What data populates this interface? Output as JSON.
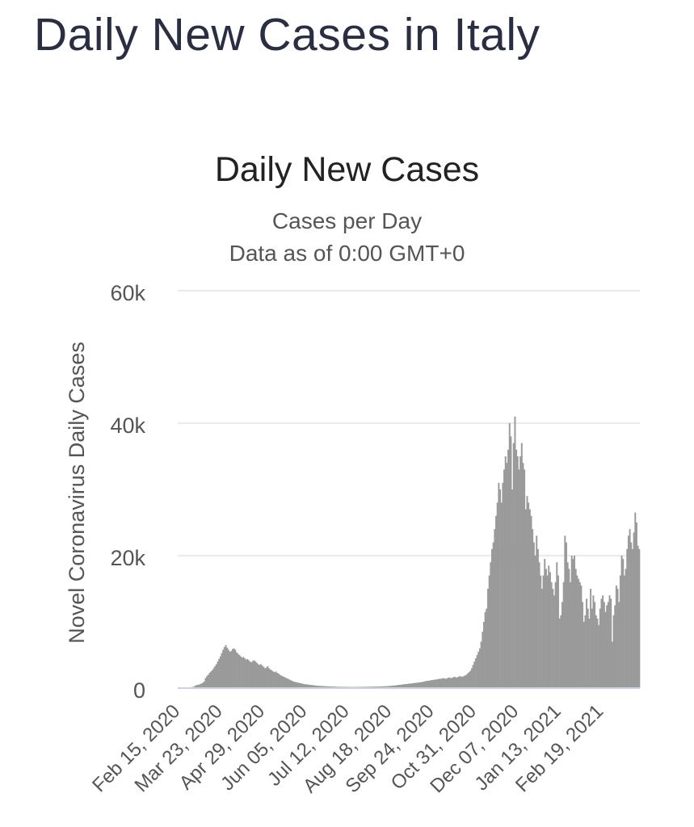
{
  "page": {
    "heading": "Daily New Cases in Italy"
  },
  "chart_data": {
    "type": "bar",
    "title": "Daily New Cases",
    "subtitle_lines": [
      "Cases per Day",
      "Data as of 0:00 GMT+0"
    ],
    "ylabel": "Novel Coronavirus Daily Cases",
    "xlabel": "",
    "ylim": [
      0,
      60000
    ],
    "y_ticks": [
      {
        "value": 0,
        "label": "0"
      },
      {
        "value": 20000,
        "label": "20k"
      },
      {
        "value": 40000,
        "label": "40k"
      },
      {
        "value": 60000,
        "label": "60k"
      }
    ],
    "x_start": "2020-02-15",
    "x_end": "2021-03-25",
    "x_tick_labels": [
      "Feb 15, 2020",
      "Mar 23, 2020",
      "Apr 29, 2020",
      "Jun 05, 2020",
      "Jul 12, 2020",
      "Aug 18, 2020",
      "Sep 24, 2020",
      "Oct 31, 2020",
      "Dec 07, 2020",
      "Jan 13, 2021",
      "Feb 19, 2021"
    ],
    "grid": true,
    "legend": "none",
    "bar_color": "#9a9a9a",
    "series": [
      {
        "values": [
          0,
          0,
          0,
          0,
          0,
          0,
          0,
          20,
          60,
          80,
          150,
          200,
          300,
          400,
          500,
          500,
          600,
          700,
          800,
          1000,
          1500,
          1800,
          2000,
          2300,
          2500,
          2700,
          3000,
          3300,
          3600,
          4000,
          4400,
          4800,
          5300,
          5800,
          6200,
          6500,
          6100,
          5800,
          5500,
          5600,
          5900,
          6000,
          5800,
          5400,
          5200,
          5000,
          4800,
          4600,
          4700,
          4500,
          4300,
          4400,
          4200,
          4000,
          3900,
          4100,
          4200,
          4000,
          3800,
          3600,
          3500,
          3600,
          3400,
          3200,
          3000,
          3100,
          3300,
          3000,
          2800,
          2700,
          2500,
          2400,
          2500,
          2300,
          2200,
          2000,
          1900,
          1800,
          1700,
          1600,
          1500,
          1400,
          1300,
          1200,
          1100,
          1000,
          950,
          900,
          850,
          800,
          750,
          700,
          650,
          600,
          580,
          550,
          520,
          500,
          480,
          450,
          420,
          400,
          380,
          350,
          330,
          320,
          310,
          300,
          290,
          280,
          270,
          260,
          250,
          240,
          230,
          220,
          210,
          200,
          200,
          200,
          190,
          190,
          180,
          180,
          180,
          180,
          170,
          170,
          170,
          170,
          170,
          170,
          170,
          180,
          180,
          180,
          190,
          190,
          200,
          200,
          200,
          200,
          210,
          210,
          220,
          220,
          230,
          230,
          240,
          250,
          250,
          260,
          270,
          280,
          290,
          300,
          320,
          340,
          360,
          380,
          400,
          420,
          450,
          480,
          500,
          520,
          550,
          580,
          600,
          620,
          650,
          680,
          700,
          720,
          750,
          780,
          800,
          820,
          850,
          880,
          900,
          950,
          1000,
          1050,
          1100,
          1100,
          1150,
          1200,
          1200,
          1250,
          1300,
          1300,
          1350,
          1400,
          1400,
          1450,
          1500,
          1450,
          1400,
          1500,
          1600,
          1550,
          1500,
          1600,
          1700,
          1650,
          1600,
          1700,
          1800,
          1750,
          1700,
          1800,
          1900,
          2000,
          2200,
          2400,
          2600,
          3000,
          3500,
          4000,
          4500,
          5000,
          5500,
          6000,
          7000,
          8500,
          10000,
          11500,
          12000,
          15000,
          17000,
          19000,
          21000,
          22000,
          24000,
          26000,
          28000,
          31000,
          30000,
          28000,
          31000,
          33000,
          35000,
          34000,
          36000,
          40000,
          38000,
          30000,
          37000,
          41000,
          36000,
          35000,
          33000,
          35000,
          37000,
          34000,
          33000,
          27000,
          29000,
          28000,
          27000,
          26000,
          24000,
          22000,
          20000,
          23000,
          21000,
          19000,
          17000,
          15000,
          17000,
          19500,
          18000,
          17000,
          18500,
          17500,
          16000,
          15000,
          14000,
          16000,
          19000,
          17000,
          10500,
          11000,
          13000,
          16000,
          23000,
          22000,
          19000,
          18000,
          16000,
          20000,
          19500,
          20000,
          18000,
          17000,
          16500,
          16000,
          15500,
          13000,
          10000,
          11000,
          13500,
          12000,
          10500,
          15000,
          12000,
          14000,
          13000,
          11000,
          10500,
          9500,
          12000,
          13500,
          14000,
          13000,
          11500,
          12500,
          13000,
          14000,
          13500,
          7000,
          11000,
          12500,
          15500,
          15000,
          13000,
          17000,
          20000,
          19500,
          17000,
          18000,
          21000,
          23000,
          24000,
          22000,
          21000,
          23500,
          26500,
          25000,
          21500,
          21000
        ]
      }
    ]
  }
}
